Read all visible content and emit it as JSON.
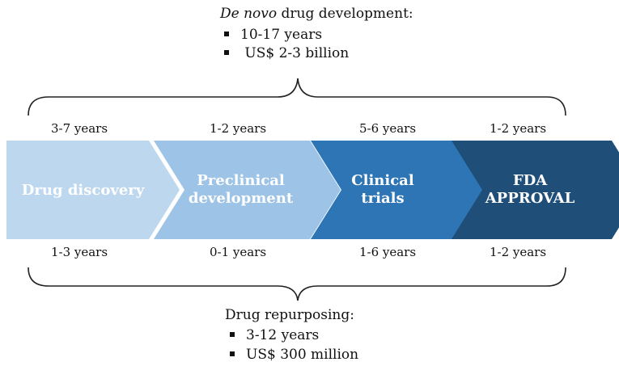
{
  "top": {
    "title_italic": "De novo",
    "title_rest": " drug development:",
    "bullets": [
      "10-17 years",
      " US$ 2-3 billion"
    ]
  },
  "stages": [
    {
      "name": "Drug discovery",
      "line1": "Drug discovery",
      "line2": "",
      "color": "#bdd7ee",
      "denovo_years": "3-7 years",
      "repurposing_years": "1-3 years"
    },
    {
      "name": "Preclinical development",
      "line1": "Preclinical",
      "line2": "development",
      "color": "#9dc3e6",
      "denovo_years": "1-2 years",
      "repurposing_years": "0-1 years"
    },
    {
      "name": "Clinical trials",
      "line1": "Clinical",
      "line2": "trials",
      "color": "#2e75b6",
      "denovo_years": "5-6 years",
      "repurposing_years": "1-6 years"
    },
    {
      "name": "FDA APPROVAL",
      "line1": "FDA",
      "line2": "APPROVAL",
      "color": "#1f4e79",
      "denovo_years": "1-2 years",
      "repurposing_years": "1-2 years"
    }
  ],
  "bottom": {
    "title": "Drug repurposing:",
    "bullets": [
      "3-12 years",
      "US$ 300 million"
    ]
  }
}
